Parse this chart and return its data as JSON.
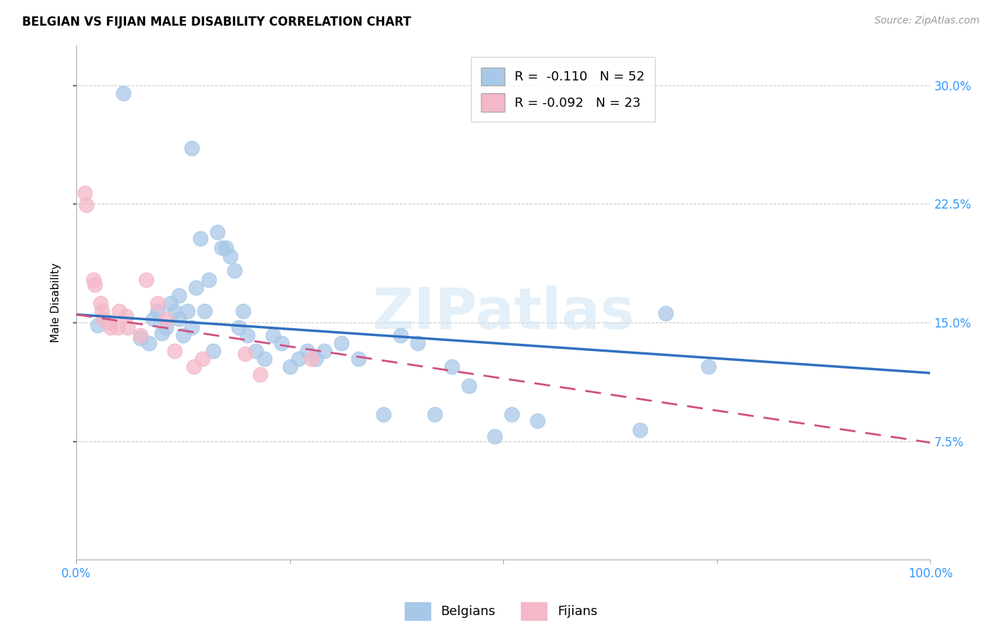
{
  "title": "BELGIAN VS FIJIAN MALE DISABILITY CORRELATION CHART",
  "source": "Source: ZipAtlas.com",
  "ylabel": "Male Disability",
  "xlim": [
    0,
    1.0
  ],
  "ylim": [
    0.0,
    0.325
  ],
  "yticks": [
    0.075,
    0.15,
    0.225,
    0.3
  ],
  "yticklabels": [
    "7.5%",
    "15.0%",
    "22.5%",
    "30.0%"
  ],
  "xtick_positions": [
    0.0,
    0.25,
    0.5,
    0.75,
    1.0
  ],
  "xticklabels": [
    "0.0%",
    "",
    "",
    "",
    "100.0%"
  ],
  "belgian_color": "#a8c8e8",
  "fijian_color": "#f4b8c8",
  "belgian_line_color": "#3070c0",
  "fijian_line_color": "#d05080",
  "belgian_R": -0.11,
  "belgian_N": 52,
  "fijian_R": -0.092,
  "fijian_N": 23,
  "watermark_text": "ZIPatlas",
  "blue_line_x0": 0.0,
  "blue_line_y0": 0.155,
  "blue_line_x1": 1.0,
  "blue_line_y1": 0.118,
  "pink_line_x0": 0.0,
  "pink_line_y0": 0.155,
  "pink_line_x1": 1.0,
  "pink_line_y1": 0.074,
  "belgians_x": [
    0.025,
    0.055,
    0.075,
    0.085,
    0.09,
    0.095,
    0.1,
    0.105,
    0.11,
    0.115,
    0.12,
    0.12,
    0.125,
    0.13,
    0.135,
    0.135,
    0.14,
    0.145,
    0.15,
    0.155,
    0.16,
    0.165,
    0.17,
    0.175,
    0.18,
    0.185,
    0.19,
    0.195,
    0.2,
    0.21,
    0.22,
    0.23,
    0.24,
    0.25,
    0.26,
    0.27,
    0.28,
    0.29,
    0.31,
    0.33,
    0.36,
    0.38,
    0.4,
    0.42,
    0.44,
    0.46,
    0.49,
    0.51,
    0.54,
    0.66,
    0.69,
    0.74
  ],
  "belgians_y": [
    0.148,
    0.295,
    0.14,
    0.137,
    0.152,
    0.157,
    0.143,
    0.147,
    0.162,
    0.157,
    0.167,
    0.152,
    0.142,
    0.157,
    0.147,
    0.26,
    0.172,
    0.203,
    0.157,
    0.177,
    0.132,
    0.207,
    0.197,
    0.197,
    0.192,
    0.183,
    0.147,
    0.157,
    0.142,
    0.132,
    0.127,
    0.142,
    0.137,
    0.122,
    0.127,
    0.132,
    0.127,
    0.132,
    0.137,
    0.127,
    0.092,
    0.142,
    0.137,
    0.092,
    0.122,
    0.11,
    0.078,
    0.092,
    0.088,
    0.082,
    0.156,
    0.122
  ],
  "fijians_x": [
    0.01,
    0.012,
    0.02,
    0.022,
    0.028,
    0.03,
    0.032,
    0.038,
    0.04,
    0.048,
    0.05,
    0.058,
    0.06,
    0.075,
    0.082,
    0.095,
    0.105,
    0.115,
    0.138,
    0.148,
    0.198,
    0.215,
    0.275
  ],
  "fijians_y": [
    0.232,
    0.224,
    0.177,
    0.174,
    0.162,
    0.157,
    0.152,
    0.15,
    0.147,
    0.147,
    0.157,
    0.154,
    0.147,
    0.142,
    0.177,
    0.162,
    0.152,
    0.132,
    0.122,
    0.127,
    0.13,
    0.117,
    0.127
  ]
}
